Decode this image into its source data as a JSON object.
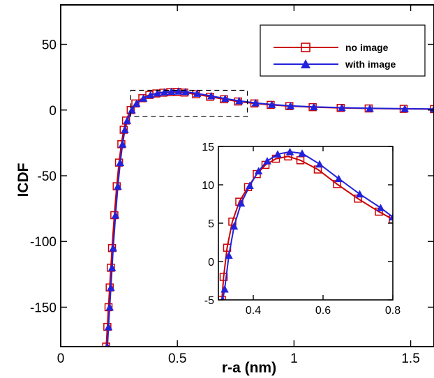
{
  "chart_data": [
    {
      "type": "line",
      "xlabel": "r-a (nm)",
      "ylabel": "ICDF",
      "xlim": [
        0,
        1.6
      ],
      "ylim": [
        -180,
        80
      ],
      "xticks": [
        "0",
        "0.5",
        "1",
        "1.5"
      ],
      "yticks": [
        "50",
        "0",
        "-50",
        "-100",
        "-150"
      ],
      "legend_position": "top-right",
      "series": [
        {
          "name": "no image",
          "color": "#cc0000",
          "marker": "square",
          "x": [
            0.195,
            0.2,
            0.205,
            0.21,
            0.215,
            0.22,
            0.23,
            0.24,
            0.25,
            0.26,
            0.27,
            0.28,
            0.3,
            0.32,
            0.35,
            0.38,
            0.41,
            0.44,
            0.47,
            0.5,
            0.53,
            0.58,
            0.64,
            0.7,
            0.76,
            0.83,
            0.9,
            0.98,
            1.08,
            1.2,
            1.32,
            1.47,
            1.6
          ],
          "y": [
            -180,
            -165,
            -150,
            -135,
            -120,
            -105,
            -80,
            -58,
            -40,
            -26,
            -15,
            -8,
            0,
            5,
            9,
            11.5,
            12.6,
            13.2,
            13.6,
            13.8,
            13.3,
            12.0,
            10.1,
            8.2,
            6.5,
            5.0,
            3.9,
            3.0,
            2.2,
            1.6,
            1.2,
            0.9,
            0.7
          ]
        },
        {
          "name": "with image",
          "color": "#2222dd",
          "marker": "triangle",
          "x": [
            0.2,
            0.205,
            0.21,
            0.215,
            0.22,
            0.225,
            0.235,
            0.245,
            0.255,
            0.265,
            0.275,
            0.285,
            0.305,
            0.325,
            0.355,
            0.385,
            0.415,
            0.445,
            0.475,
            0.505,
            0.535,
            0.585,
            0.645,
            0.705,
            0.765,
            0.835,
            0.905,
            0.985,
            1.085,
            1.205,
            1.325,
            1.475,
            1.6
          ],
          "y": [
            -180,
            -165,
            -150,
            -135,
            -120,
            -105,
            -80,
            -58,
            -40,
            -26,
            -15,
            -8,
            0,
            5,
            9,
            11.5,
            12.9,
            13.7,
            14.1,
            14.3,
            13.9,
            12.6,
            10.7,
            8.7,
            7.0,
            5.4,
            4.2,
            3.2,
            2.4,
            1.8,
            1.3,
            1.0,
            0.8
          ]
        }
      ]
    },
    {
      "type": "line",
      "inset": true,
      "xlim": [
        0.3,
        0.8
      ],
      "ylim": [
        -5,
        15
      ],
      "xticks": [
        "0.4",
        "0.6",
        "0.8"
      ],
      "yticks": [
        "15",
        "10",
        "5",
        "0",
        "-5"
      ],
      "series": [
        {
          "name": "no image",
          "color": "#cc0000",
          "marker": "square",
          "x": [
            0.31,
            0.315,
            0.325,
            0.34,
            0.36,
            0.385,
            0.41,
            0.435,
            0.465,
            0.5,
            0.535,
            0.585,
            0.64,
            0.7,
            0.76,
            0.8
          ],
          "y": [
            -5,
            -2.0,
            1.8,
            5.2,
            7.8,
            9.7,
            11.4,
            12.6,
            13.4,
            13.7,
            13.2,
            12.0,
            10.1,
            8.2,
            6.5,
            5.5
          ]
        },
        {
          "name": "with image",
          "color": "#2222dd",
          "marker": "triangle",
          "x": [
            0.312,
            0.318,
            0.33,
            0.345,
            0.365,
            0.39,
            0.415,
            0.44,
            0.47,
            0.505,
            0.54,
            0.59,
            0.645,
            0.705,
            0.765,
            0.8
          ],
          "y": [
            -5,
            -3.6,
            0.8,
            4.6,
            7.6,
            9.9,
            11.8,
            13.1,
            14.0,
            14.3,
            14.1,
            12.7,
            10.8,
            8.8,
            7.0,
            5.8
          ]
        }
      ]
    }
  ]
}
